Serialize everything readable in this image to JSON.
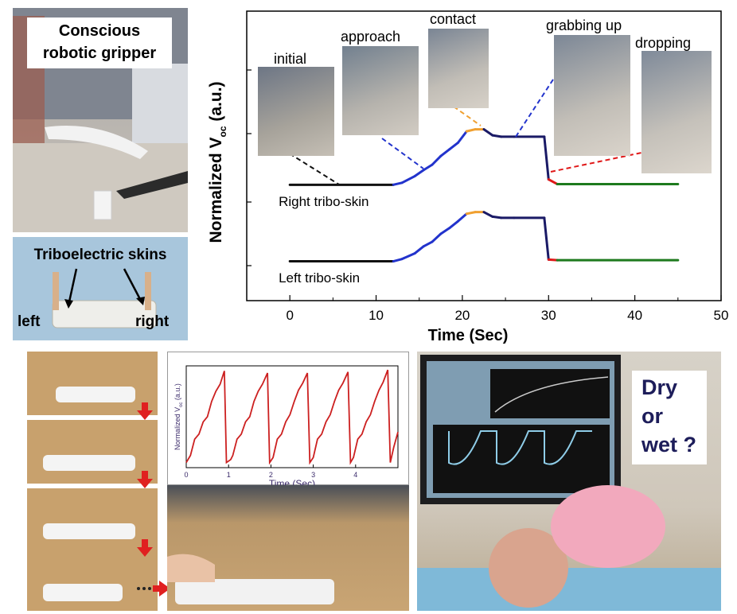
{
  "panel_a": {
    "title_line1": "Conscious",
    "title_line2": "robotic gripper"
  },
  "panel_b": {
    "title": "Triboelectric skins",
    "left": "left",
    "right": "right"
  },
  "chart_data": [
    {
      "type": "line",
      "title": "",
      "xlabel": "Time (Sec)",
      "ylabel": "Normalized V",
      "ylabel_sub": "oc",
      "ylabel_unit": "(a.u.)",
      "xlim": [
        -5,
        50
      ],
      "xticks": [
        0,
        10,
        20,
        30,
        40,
        50
      ],
      "grid": false,
      "stage_labels": [
        "initial",
        "approach",
        "contact",
        "grabbing up",
        "dropping"
      ],
      "series": [
        {
          "name": "Right tribo-skin",
          "color_by_stage": {
            "initial": "#111111",
            "approach": "#2233cc",
            "contact": "#f0a030",
            "hold": "#1a1a66",
            "drop": "#e01818",
            "released": "#1e7a1e"
          },
          "points": [
            [
              0,
              0.02
            ],
            [
              12,
              0.02
            ],
            [
              13,
              0.05
            ],
            [
              14.5,
              0.15
            ],
            [
              15.5,
              0.24
            ],
            [
              16.5,
              0.32
            ],
            [
              17.5,
              0.45
            ],
            [
              18.5,
              0.55
            ],
            [
              19.5,
              0.65
            ],
            [
              20.5,
              0.82
            ],
            [
              21.5,
              0.85
            ],
            [
              22.5,
              0.85
            ],
            [
              23.5,
              0.76
            ],
            [
              24.5,
              0.74
            ],
            [
              26,
              0.74
            ],
            [
              29.5,
              0.74
            ],
            [
              30,
              0.1
            ],
            [
              31,
              0.03
            ],
            [
              45,
              0.03
            ]
          ]
        },
        {
          "name": "Left tribo-skin",
          "points": [
            [
              0,
              0.02
            ],
            [
              12,
              0.02
            ],
            [
              13,
              0.06
            ],
            [
              14.5,
              0.16
            ],
            [
              15.5,
              0.28
            ],
            [
              16.5,
              0.36
            ],
            [
              17.5,
              0.5
            ],
            [
              18.5,
              0.6
            ],
            [
              19.5,
              0.72
            ],
            [
              20.5,
              0.85
            ],
            [
              21.5,
              0.88
            ],
            [
              22.5,
              0.88
            ],
            [
              23.5,
              0.8
            ],
            [
              24.5,
              0.78
            ],
            [
              26,
              0.78
            ],
            [
              29.5,
              0.78
            ],
            [
              30,
              0.05
            ],
            [
              31,
              0.04
            ],
            [
              45,
              0.04
            ]
          ]
        }
      ]
    },
    {
      "type": "line",
      "xlabel": "Time (Sec)",
      "ylabel": "Normalized V",
      "ylabel_sub": "oc",
      "ylabel_unit": "(a.u.)",
      "xlim": [
        0,
        5
      ],
      "xticks": [
        0,
        1,
        2,
        3,
        4
      ],
      "series": [
        {
          "color": "#cc2020",
          "points": [
            [
              0,
              0.05
            ],
            [
              0.1,
              0.12
            ],
            [
              0.2,
              0.28
            ],
            [
              0.3,
              0.33
            ],
            [
              0.4,
              0.45
            ],
            [
              0.5,
              0.5
            ],
            [
              0.6,
              0.65
            ],
            [
              0.7,
              0.75
            ],
            [
              0.8,
              0.82
            ],
            [
              0.9,
              0.95
            ],
            [
              0.95,
              0.05
            ],
            [
              1.05,
              0.08
            ],
            [
              1.1,
              0.12
            ],
            [
              1.2,
              0.28
            ],
            [
              1.3,
              0.33
            ],
            [
              1.4,
              0.45
            ],
            [
              1.5,
              0.5
            ],
            [
              1.6,
              0.65
            ],
            [
              1.7,
              0.75
            ],
            [
              1.8,
              0.82
            ],
            [
              1.92,
              0.93
            ],
            [
              1.97,
              0.05
            ],
            [
              2.05,
              0.1
            ],
            [
              2.15,
              0.28
            ],
            [
              2.25,
              0.33
            ],
            [
              2.35,
              0.45
            ],
            [
              2.45,
              0.52
            ],
            [
              2.55,
              0.65
            ],
            [
              2.65,
              0.76
            ],
            [
              2.75,
              0.83
            ],
            [
              2.86,
              0.93
            ],
            [
              2.92,
              0.05
            ],
            [
              3.0,
              0.1
            ],
            [
              3.1,
              0.28
            ],
            [
              3.2,
              0.33
            ],
            [
              3.3,
              0.45
            ],
            [
              3.4,
              0.52
            ],
            [
              3.5,
              0.65
            ],
            [
              3.6,
              0.76
            ],
            [
              3.7,
              0.83
            ],
            [
              3.82,
              0.94
            ],
            [
              3.88,
              0.05
            ],
            [
              3.95,
              0.1
            ],
            [
              4.05,
              0.28
            ],
            [
              4.15,
              0.33
            ],
            [
              4.25,
              0.45
            ],
            [
              4.35,
              0.52
            ],
            [
              4.45,
              0.65
            ],
            [
              4.55,
              0.76
            ],
            [
              4.65,
              0.84
            ],
            [
              4.76,
              0.96
            ],
            [
              4.82,
              0.05
            ],
            [
              4.9,
              0.2
            ],
            [
              5.0,
              0.35
            ]
          ]
        }
      ]
    }
  ],
  "panel_e": {
    "line1": "Dry",
    "line2": "or",
    "line3": "wet ?"
  }
}
